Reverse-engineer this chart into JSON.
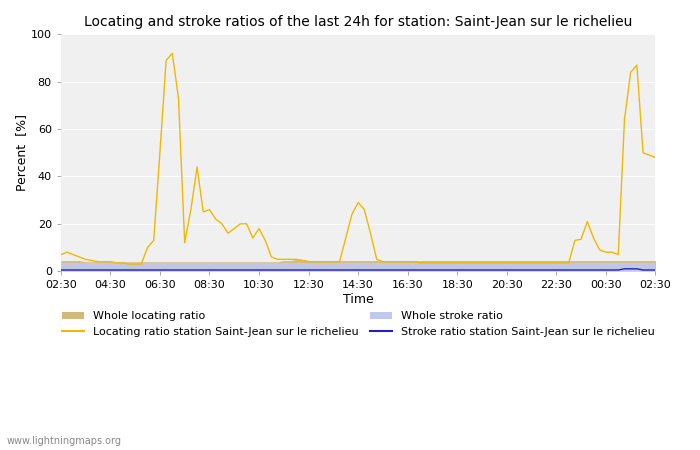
{
  "title": "Locating and stroke ratios of the last 24h for station: Saint-Jean sur le richelieu",
  "xlabel": "Time",
  "ylabel": "Percent  [%]",
  "ylim": [
    0,
    100
  ],
  "background_color": "#ffffff",
  "watermark": "www.lightningmaps.org",
  "time_labels": [
    "02:30",
    "04:30",
    "06:30",
    "08:30",
    "10:30",
    "12:30",
    "14:30",
    "16:30",
    "18:30",
    "20:30",
    "22:30",
    "00:30",
    "02:30"
  ],
  "whole_locating_color": "#d4b87a",
  "whole_stroke_color": "#c0c8f0",
  "locating_station_color": "#f0b800",
  "stroke_station_color": "#2020c0",
  "times_hours": [
    2.5,
    2.75,
    3.0,
    3.25,
    3.5,
    3.75,
    4.0,
    4.25,
    4.5,
    4.75,
    5.0,
    5.25,
    5.5,
    5.75,
    6.0,
    6.25,
    6.5,
    6.75,
    7.0,
    7.25,
    7.5,
    7.75,
    8.0,
    8.25,
    8.5,
    8.75,
    9.0,
    9.25,
    9.5,
    9.75,
    10.0,
    10.25,
    10.5,
    10.75,
    11.0,
    11.25,
    11.5,
    11.75,
    12.0,
    12.25,
    12.5,
    12.75,
    13.0,
    13.25,
    13.5,
    13.75,
    14.0,
    14.25,
    14.5,
    14.75,
    15.0,
    15.25,
    15.5,
    15.75,
    16.0,
    16.25,
    16.5,
    16.75,
    17.0,
    17.25,
    17.5,
    17.75,
    18.0,
    18.25,
    18.5,
    18.75,
    19.0,
    19.25,
    19.5,
    19.75,
    20.0,
    20.25,
    20.5,
    20.75,
    21.0,
    21.25,
    21.5,
    21.75,
    22.0,
    22.25,
    22.5,
    22.75,
    23.0,
    23.25,
    23.5,
    23.75,
    24.0,
    24.25,
    24.5,
    24.75,
    25.0,
    25.25,
    25.5,
    25.75,
    26.0,
    26.5
  ],
  "locating_station": [
    7.0,
    8.0,
    7.0,
    6.0,
    5.0,
    4.5,
    4.0,
    4.0,
    4.0,
    3.5,
    3.5,
    3.0,
    3.0,
    3.0,
    10.0,
    13.0,
    50.0,
    89.0,
    92.0,
    73.0,
    12.0,
    26.0,
    44.0,
    25.0,
    26.0,
    22.0,
    20.0,
    16.0,
    18.0,
    20.0,
    20.0,
    14.0,
    18.0,
    13.0,
    6.0,
    5.0,
    5.0,
    5.0,
    5.0,
    4.5,
    4.0,
    4.0,
    4.0,
    4.0,
    4.0,
    4.0,
    14.0,
    24.0,
    29.0,
    26.0,
    16.0,
    5.0,
    4.0,
    4.0,
    4.0,
    4.0,
    4.0,
    4.0,
    3.5,
    3.5,
    3.5,
    3.5,
    3.5,
    3.5,
    3.5,
    3.5,
    3.5,
    3.5,
    3.5,
    3.5,
    3.5,
    3.5,
    3.5,
    3.5,
    3.5,
    3.5,
    3.5,
    3.5,
    3.5,
    3.5,
    3.5,
    3.5,
    3.5,
    13.0,
    13.5,
    21.0,
    14.0,
    9.0,
    8.0,
    8.0,
    7.0,
    64.0,
    84.0,
    87.0,
    50.0,
    48.0
  ],
  "stroke_station": [
    0.5,
    0.5,
    0.5,
    0.5,
    0.5,
    0.5,
    0.5,
    0.5,
    0.5,
    0.5,
    0.5,
    0.5,
    0.5,
    0.5,
    0.5,
    0.5,
    0.5,
    0.5,
    0.5,
    0.5,
    0.5,
    0.5,
    0.5,
    0.5,
    0.5,
    0.5,
    0.5,
    0.5,
    0.5,
    0.5,
    0.5,
    0.5,
    0.5,
    0.5,
    0.5,
    0.5,
    0.5,
    0.5,
    0.5,
    0.5,
    0.5,
    0.5,
    0.5,
    0.5,
    0.5,
    0.5,
    0.5,
    0.5,
    0.5,
    0.5,
    0.5,
    0.5,
    0.5,
    0.5,
    0.5,
    0.5,
    0.5,
    0.5,
    0.5,
    0.5,
    0.5,
    0.5,
    0.5,
    0.5,
    0.5,
    0.5,
    0.5,
    0.5,
    0.5,
    0.5,
    0.5,
    0.5,
    0.5,
    0.5,
    0.5,
    0.5,
    0.5,
    0.5,
    0.5,
    0.5,
    0.5,
    0.5,
    0.5,
    0.5,
    0.5,
    0.5,
    0.5,
    0.5,
    0.5,
    0.5,
    0.5,
    1.0,
    1.0,
    1.0,
    0.5,
    0.5
  ],
  "whole_locating": [
    4.5,
    4.5,
    4.5,
    4.5,
    4.0,
    4.0,
    4.0,
    4.0,
    4.0,
    4.0,
    4.0,
    4.0,
    4.0,
    4.0,
    4.0,
    4.0,
    4.0,
    4.0,
    4.0,
    4.0,
    4.0,
    4.0,
    4.0,
    4.0,
    4.0,
    4.0,
    4.0,
    4.0,
    4.0,
    4.0,
    4.0,
    4.0,
    4.0,
    4.0,
    4.0,
    4.0,
    4.5,
    4.5,
    5.0,
    5.0,
    4.5,
    4.5,
    4.5,
    4.5,
    4.5,
    4.5,
    4.5,
    4.5,
    4.5,
    4.5,
    4.5,
    4.5,
    4.5,
    4.5,
    4.5,
    4.5,
    4.5,
    4.5,
    4.5,
    4.5,
    4.5,
    4.5,
    4.5,
    4.5,
    4.5,
    4.5,
    4.5,
    4.5,
    4.5,
    4.5,
    4.5,
    4.5,
    4.5,
    4.5,
    4.5,
    4.5,
    4.5,
    4.5,
    4.5,
    4.5,
    4.5,
    4.5,
    4.5,
    4.5,
    4.5,
    4.5,
    4.5,
    4.5,
    4.5,
    4.5,
    4.5,
    4.5,
    4.5,
    4.5,
    4.5,
    4.5
  ],
  "whole_stroke": [
    3.5,
    3.5,
    3.5,
    3.5,
    3.5,
    3.5,
    3.5,
    3.5,
    3.5,
    3.5,
    3.5,
    3.5,
    3.5,
    3.5,
    3.5,
    3.5,
    3.5,
    3.5,
    3.5,
    3.5,
    3.5,
    3.5,
    3.5,
    3.5,
    3.5,
    3.5,
    3.5,
    3.5,
    3.5,
    3.5,
    3.5,
    3.5,
    3.5,
    3.5,
    3.5,
    3.5,
    3.5,
    3.5,
    3.5,
    3.5,
    3.5,
    3.5,
    3.5,
    3.5,
    3.5,
    3.5,
    3.5,
    3.5,
    3.5,
    3.5,
    3.5,
    3.5,
    3.5,
    3.5,
    3.5,
    3.5,
    3.5,
    3.5,
    3.5,
    3.5,
    3.5,
    3.5,
    3.5,
    3.5,
    3.5,
    3.5,
    3.5,
    3.5,
    3.5,
    3.5,
    3.5,
    3.5,
    3.5,
    3.5,
    3.5,
    3.5,
    3.5,
    3.5,
    3.5,
    3.5,
    3.5,
    3.5,
    3.5,
    3.5,
    3.5,
    3.5,
    3.5,
    3.5,
    3.5,
    3.5,
    3.5,
    3.5,
    3.5,
    3.5,
    3.5,
    3.5
  ]
}
